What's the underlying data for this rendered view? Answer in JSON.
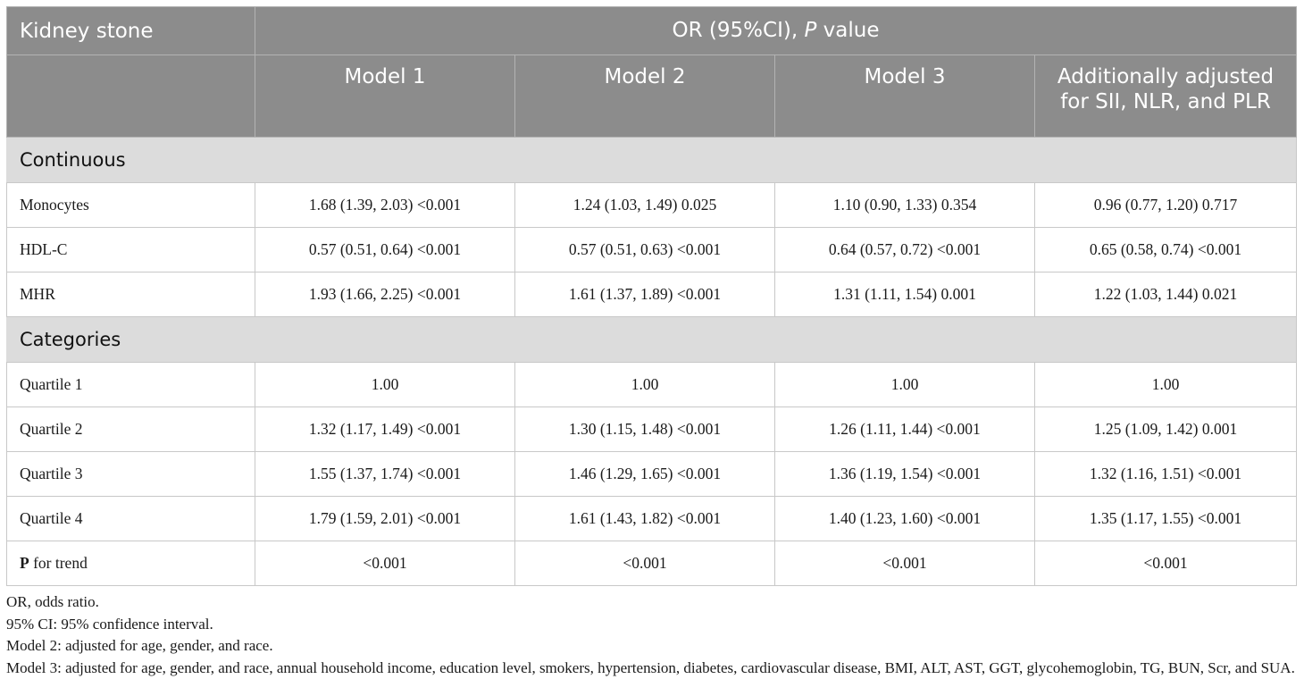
{
  "header": {
    "row_label": "Kidney stone",
    "group_prefix": "OR (95%CI), ",
    "group_italic": "P",
    "group_suffix": " value",
    "models": [
      "Model 1",
      "Model 2",
      "Model 3"
    ],
    "additional_line1": "Additionally adjusted",
    "additional_line2": "for SII, NLR, and PLR"
  },
  "sections": {
    "continuous": {
      "label": "Continuous",
      "rows": [
        {
          "label": "Monocytes",
          "values": [
            "1.68 (1.39, 2.03) <0.001",
            "1.24 (1.03, 1.49) 0.025",
            "1.10 (0.90, 1.33) 0.354",
            "0.96 (0.77, 1.20) 0.717"
          ]
        },
        {
          "label": "HDL-C",
          "values": [
            "0.57 (0.51, 0.64) <0.001",
            "0.57 (0.51, 0.63) <0.001",
            "0.64 (0.57, 0.72) <0.001",
            "0.65 (0.58, 0.74) <0.001"
          ]
        },
        {
          "label": "MHR",
          "values": [
            "1.93 (1.66, 2.25) <0.001",
            "1.61 (1.37, 1.89) <0.001",
            "1.31 (1.11, 1.54) 0.001",
            "1.22 (1.03, 1.44) 0.021"
          ]
        }
      ]
    },
    "categories": {
      "label": "Categories",
      "rows": [
        {
          "label": "Quartile 1",
          "values": [
            "1.00",
            "1.00",
            "1.00",
            "1.00"
          ]
        },
        {
          "label": "Quartile 2",
          "values": [
            "1.32 (1.17, 1.49) <0.001",
            "1.30 (1.15, 1.48) <0.001",
            "1.26 (1.11, 1.44) <0.001",
            "1.25 (1.09, 1.42) 0.001"
          ]
        },
        {
          "label": "Quartile 3",
          "values": [
            "1.55 (1.37, 1.74) <0.001",
            "1.46 (1.29, 1.65) <0.001",
            "1.36 (1.19, 1.54) <0.001",
            "1.32 (1.16, 1.51) <0.001"
          ]
        },
        {
          "label": "Quartile 4",
          "values": [
            "1.79 (1.59, 2.01) <0.001",
            "1.61 (1.43, 1.82) <0.001",
            "1.40 (1.23, 1.60) <0.001",
            "1.35 (1.17, 1.55) <0.001"
          ]
        }
      ]
    },
    "trend": {
      "label_bold": "P",
      "label_rest": " for trend",
      "values": [
        "<0.001",
        "<0.001",
        "<0.001",
        "<0.001"
      ]
    }
  },
  "footnotes": [
    "OR, odds ratio.",
    "95% CI: 95% confidence interval.",
    "Model 2: adjusted for age, gender, and race.",
    "Model 3: adjusted for age, gender, and race, annual household income, education level, smokers, hypertension, diabetes, cardiovascular disease, BMI, ALT, AST, GGT, glycohemoglobin, TG, BUN, Scr, and SUA."
  ]
}
